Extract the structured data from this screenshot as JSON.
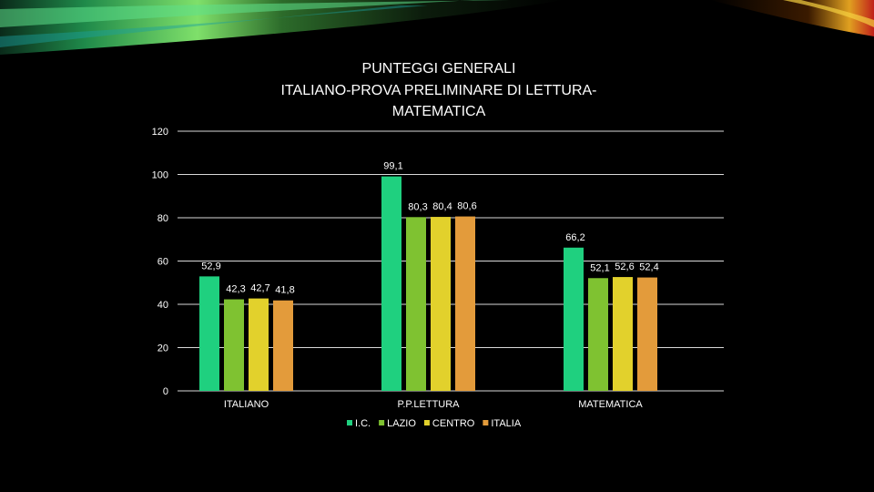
{
  "colors": {
    "background": "#000000",
    "series": [
      "#1fd07f",
      "#7fc231",
      "#e2d12c",
      "#e39b3b"
    ],
    "gridline": "#d9d9d9"
  },
  "chart_data": {
    "type": "bar",
    "title_lines": [
      "PUNTEGGI GENERALI",
      "ITALIANO-PROVA PRELIMINARE DI LETTURA-",
      "MATEMATICA"
    ],
    "categories": [
      "ITALIANO",
      "P.P.LETTURA",
      "MATEMATICA"
    ],
    "series": [
      {
        "name": "I.C.",
        "values": [
          52.9,
          99.1,
          66.2
        ],
        "labels": [
          "52,9",
          "99,1",
          "66,2"
        ]
      },
      {
        "name": "LAZIO",
        "values": [
          42.3,
          80.3,
          52.1
        ],
        "labels": [
          "42,3",
          "80,3",
          "52,1"
        ]
      },
      {
        "name": "CENTRO",
        "values": [
          42.7,
          80.4,
          52.6
        ],
        "labels": [
          "42,7",
          "80,4",
          "52,6"
        ]
      },
      {
        "name": "ITALIA",
        "values": [
          41.8,
          80.6,
          52.4
        ],
        "labels": [
          "41,8",
          "80,6",
          "52,4"
        ]
      }
    ],
    "ylim": [
      0,
      120
    ],
    "yticks": [
      0,
      20,
      40,
      60,
      80,
      100,
      120
    ],
    "grid": true,
    "legend_position": "bottom"
  }
}
